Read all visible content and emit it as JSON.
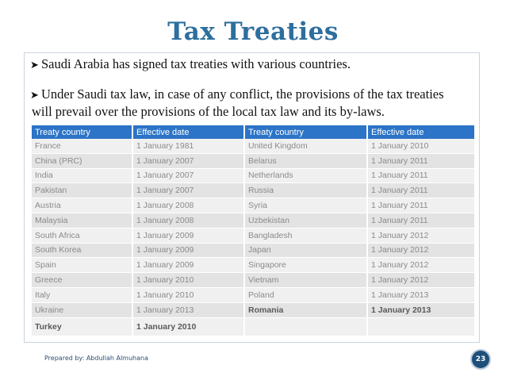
{
  "slide": {
    "title": "Tax Treaties",
    "bullets": [
      "Saudi Arabia has signed tax treaties with various countries.",
      "Under Saudi tax law, in case of any conflict, the provisions of the tax treaties",
      "will prevail over the provisions of the local tax law and its by-laws."
    ],
    "bullet_icon": "arrow-bullet-icon"
  },
  "table": {
    "headers": [
      "Treaty country",
      "Effective date",
      "Treaty country",
      "Effective date"
    ],
    "rows": [
      [
        "France",
        "1 January 1981",
        "United Kingdom",
        "1 January 2010"
      ],
      [
        "China (PRC)",
        "1 January 2007",
        "Belarus",
        "1 January 2011"
      ],
      [
        "India",
        "1 January 2007",
        "Netherlands",
        "1 January 2011"
      ],
      [
        "Pakistan",
        "1 January 2007",
        "Russia",
        "1 January 2011"
      ],
      [
        "Austria",
        "1 January 2008",
        "Syria",
        "1 January 2011"
      ],
      [
        "Malaysia",
        "1 January 2008",
        "Uzbekistan",
        "1 January 2011"
      ],
      [
        "South Africa",
        "1 January 2009",
        "Bangladesh",
        "1 January 2012"
      ],
      [
        "South Korea",
        "1 January 2009",
        "Japan",
        "1 January 2012"
      ],
      [
        "Spain",
        "1 January 2009",
        "Singapore",
        "1 January 2012"
      ],
      [
        "Greece",
        "1 January 2010",
        "Vietnam",
        "1 January 2012"
      ],
      [
        "Italy",
        "1 January 2010",
        "Poland",
        "1 January 2013"
      ],
      [
        "Ukraine",
        "1 January 2013",
        "Romania",
        "1 January 2013"
      ],
      [
        "Turkey",
        "1 January 2010",
        "",
        ""
      ]
    ]
  },
  "footer": {
    "prepared_by": "Prepared by: Abdullah Almuhana",
    "page_number": "23"
  },
  "colors": {
    "title": "#2d6f9e",
    "header_bg": "#2b74c7",
    "page_badge": "#1e4f7a"
  }
}
